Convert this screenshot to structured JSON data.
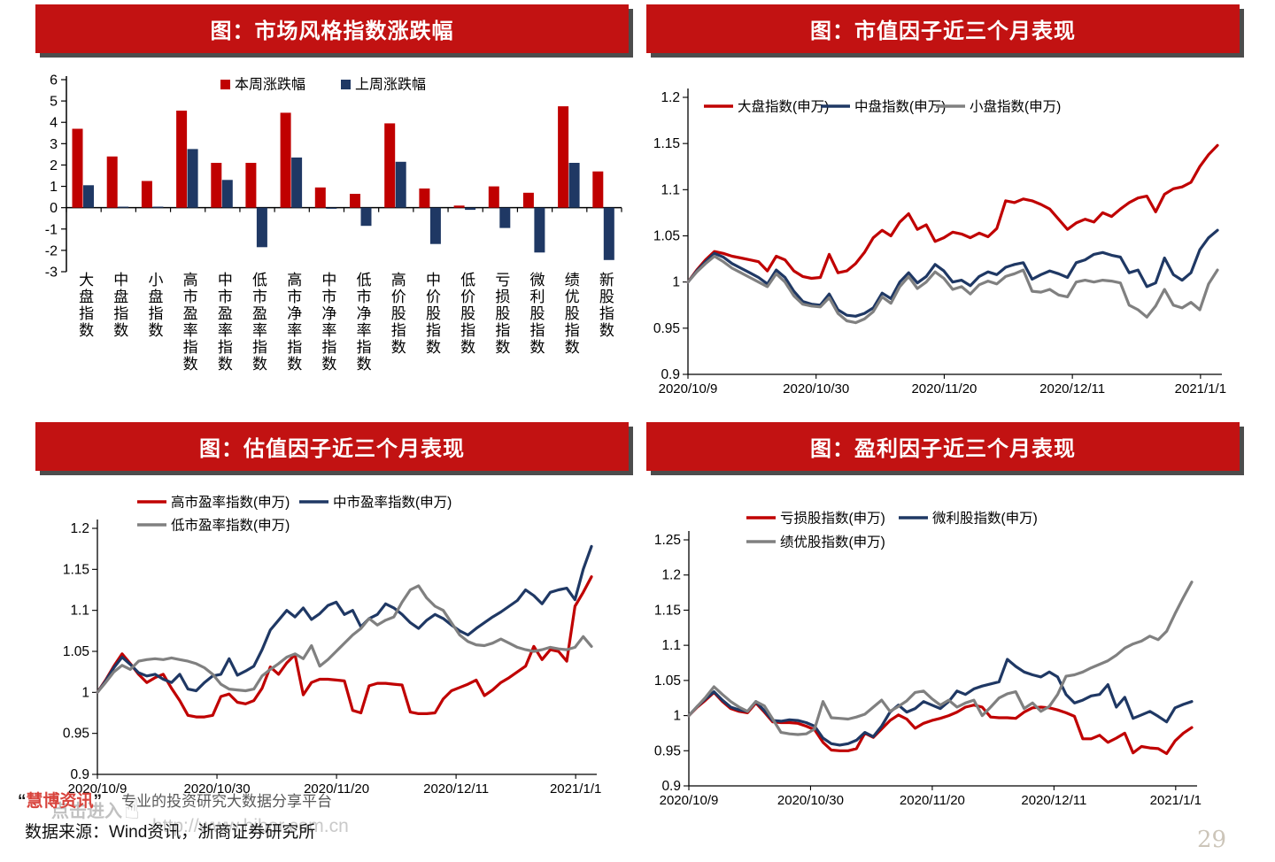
{
  "page": {
    "number": "29"
  },
  "colors": {
    "header_red": "#c21212",
    "header_shadow": "#4c4c4c",
    "series_red": "#c00000",
    "series_navy": "#1f3864",
    "series_gray": "#808080",
    "axis_black": "#000000",
    "page_number": "#ccc5b9",
    "brand_red": "#d8433c"
  },
  "footer": {
    "quote_open": "“",
    "brand": "慧博资讯",
    "quote_close": "”",
    "tagline": "专业的投资研究大数据分享平台",
    "source": "数据来源：Wind资讯，浙商证券研究所",
    "watermark_click": "点击进入",
    "watermark_hand": "☝",
    "watermark_url": "http://www.hibor.com.cn"
  },
  "chart_data": [
    {
      "type": "bar",
      "title": "图：市场风格指数涨跌幅",
      "ylim": [
        -3,
        6
      ],
      "ytick_step": 1,
      "grid": false,
      "legend_position": "top-center",
      "categories": [
        "大盘指数",
        "中盘指数",
        "小盘指数",
        "高市盈率指数",
        "中市盈率指数",
        "低市盈率指数",
        "高市净率指数",
        "中市净率指数",
        "低市净率指数",
        "高价股指数",
        "中价股指数",
        "低价股指数",
        "亏损股指数",
        "微利股指数",
        "绩优股指数",
        "新股指数"
      ],
      "series": [
        {
          "name": "本周涨跌幅",
          "color": "#c00000",
          "values": [
            3.7,
            2.4,
            1.25,
            4.55,
            2.1,
            2.1,
            4.45,
            0.95,
            0.65,
            3.95,
            0.9,
            0.1,
            1.0,
            0.7,
            4.75,
            1.7
          ]
        },
        {
          "name": "上周涨跌幅",
          "color": "#1f3864",
          "values": [
            1.05,
            0.05,
            0.05,
            2.75,
            1.3,
            -1.85,
            2.35,
            -0.05,
            -0.85,
            2.15,
            -1.7,
            -0.1,
            -0.95,
            -2.1,
            2.1,
            -2.45
          ]
        }
      ]
    },
    {
      "type": "line",
      "title": "图：市值因子近三个月表现",
      "ylim": [
        0.9,
        1.2
      ],
      "yticks": [
        "1.2",
        "1.15",
        "1.1",
        "1.05",
        "1",
        "0.95",
        "0.9"
      ],
      "xticklabels": [
        "2020/10/9",
        "2020/10/30",
        "2020/11/20",
        "2020/12/11",
        "2021/1/1"
      ],
      "grid": false,
      "legend_position": "top-inside",
      "series": [
        {
          "name": "大盘指数(申万)",
          "color": "#c00000",
          "values": [
            1.0,
            1.013,
            1.024,
            1.033,
            1.031,
            1.028,
            1.026,
            1.024,
            1.022,
            1.012,
            1.028,
            1.024,
            1.012,
            1.006,
            1.004,
            1.005,
            1.03,
            1.01,
            1.012,
            1.02,
            1.032,
            1.048,
            1.056,
            1.05,
            1.065,
            1.074,
            1.057,
            1.062,
            1.044,
            1.048,
            1.054,
            1.052,
            1.048,
            1.053,
            1.049,
            1.058,
            1.088,
            1.086,
            1.09,
            1.088,
            1.084,
            1.079,
            1.068,
            1.057,
            1.064,
            1.068,
            1.065,
            1.075,
            1.071,
            1.079,
            1.086,
            1.091,
            1.093,
            1.076,
            1.095,
            1.101,
            1.103,
            1.108,
            1.125,
            1.138,
            1.148
          ]
        },
        {
          "name": "中盘指数(申万)",
          "color": "#1f3864",
          "values": [
            1.0,
            1.012,
            1.022,
            1.031,
            1.027,
            1.02,
            1.015,
            1.01,
            1.005,
            0.998,
            1.013,
            1.005,
            0.99,
            0.979,
            0.976,
            0.975,
            0.987,
            0.97,
            0.964,
            0.963,
            0.966,
            0.972,
            0.988,
            0.982,
            1.0,
            1.01,
            0.999,
            1.006,
            1.019,
            1.012,
            1.0,
            1.002,
            0.996,
            1.006,
            1.011,
            1.008,
            1.016,
            1.019,
            1.021,
            1.003,
            1.008,
            1.012,
            1.009,
            1.005,
            1.021,
            1.024,
            1.03,
            1.032,
            1.029,
            1.027,
            1.01,
            1.013,
            0.995,
            0.999,
            1.026,
            1.008,
            1.002,
            1.01,
            1.035,
            1.048,
            1.056
          ]
        },
        {
          "name": "小盘指数(申万)",
          "color": "#808080",
          "values": [
            1.0,
            1.011,
            1.02,
            1.028,
            1.022,
            1.015,
            1.01,
            1.005,
            1.0,
            0.995,
            1.009,
            1.0,
            0.985,
            0.976,
            0.974,
            0.973,
            0.983,
            0.966,
            0.958,
            0.956,
            0.96,
            0.968,
            0.984,
            0.977,
            0.995,
            1.006,
            0.993,
            1.0,
            1.011,
            1.004,
            0.992,
            0.995,
            0.987,
            0.997,
            1.001,
            0.998,
            1.006,
            1.009,
            1.013,
            0.99,
            0.989,
            0.992,
            0.986,
            0.984,
            1.0,
            1.002,
            1.0,
            1.002,
            1.001,
            0.999,
            0.975,
            0.97,
            0.962,
            0.974,
            0.992,
            0.975,
            0.972,
            0.978,
            0.97,
            0.998,
            1.013
          ]
        }
      ]
    },
    {
      "type": "line",
      "title": "图：估值因子近三个月表现",
      "ylim": [
        0.9,
        1.2
      ],
      "yticks": [
        "1.2",
        "1.15",
        "1.1",
        "1.05",
        "1",
        "0.95",
        "0.9"
      ],
      "xticklabels": [
        "2020/10/9",
        "2020/10/30",
        "2020/11/20",
        "2020/12/11",
        "2021/1/1"
      ],
      "grid": false,
      "legend_position": "top-inside-2rows",
      "series": [
        {
          "name": "高市盈率指数(申万)",
          "color": "#c00000",
          "values": [
            1.0,
            1.015,
            1.032,
            1.047,
            1.035,
            1.022,
            1.012,
            1.018,
            1.022,
            1.005,
            0.99,
            0.972,
            0.97,
            0.97,
            0.972,
            0.995,
            0.998,
            0.988,
            0.986,
            0.99,
            1.005,
            1.031,
            1.022,
            1.036,
            1.046,
            0.997,
            1.012,
            1.016,
            1.016,
            1.015,
            1.014,
            0.978,
            0.975,
            1.008,
            1.011,
            1.011,
            1.01,
            1.009,
            0.976,
            0.974,
            0.974,
            0.975,
            0.992,
            1.002,
            1.006,
            1.01,
            1.015,
            0.996,
            1.003,
            1.012,
            1.018,
            1.025,
            1.032,
            1.056,
            1.04,
            1.052,
            1.05,
            1.038,
            1.105,
            1.122,
            1.141
          ]
        },
        {
          "name": "中市盈率指数(申万)",
          "color": "#1f3864",
          "values": [
            1.0,
            1.014,
            1.03,
            1.043,
            1.034,
            1.024,
            1.02,
            1.022,
            1.016,
            1.012,
            1.022,
            1.004,
            1.002,
            1.012,
            1.02,
            1.022,
            1.041,
            1.021,
            1.026,
            1.032,
            1.052,
            1.076,
            1.088,
            1.1,
            1.092,
            1.103,
            1.089,
            1.096,
            1.106,
            1.11,
            1.095,
            1.1,
            1.08,
            1.09,
            1.095,
            1.108,
            1.103,
            1.095,
            1.085,
            1.078,
            1.088,
            1.095,
            1.09,
            1.082,
            1.075,
            1.07,
            1.078,
            1.085,
            1.092,
            1.098,
            1.105,
            1.112,
            1.125,
            1.118,
            1.108,
            1.122,
            1.125,
            1.127,
            1.113,
            1.15,
            1.178
          ]
        },
        {
          "name": "低市盈率指数(申万)",
          "color": "#808080",
          "values": [
            1.0,
            1.012,
            1.025,
            1.033,
            1.028,
            1.038,
            1.04,
            1.041,
            1.04,
            1.042,
            1.04,
            1.038,
            1.035,
            1.03,
            1.022,
            1.01,
            1.004,
            1.003,
            1.002,
            1.004,
            1.02,
            1.028,
            1.035,
            1.043,
            1.047,
            1.041,
            1.057,
            1.032,
            1.04,
            1.05,
            1.06,
            1.07,
            1.078,
            1.09,
            1.082,
            1.088,
            1.092,
            1.11,
            1.125,
            1.13,
            1.115,
            1.105,
            1.1,
            1.085,
            1.07,
            1.062,
            1.058,
            1.057,
            1.06,
            1.065,
            1.06,
            1.055,
            1.052,
            1.05,
            1.052,
            1.055,
            1.053,
            1.052,
            1.055,
            1.068,
            1.056
          ]
        }
      ]
    },
    {
      "type": "line",
      "title": "图：盈利因子近三个月表现",
      "ylim": [
        0.9,
        1.25
      ],
      "yticks": [
        "1.25",
        "1.2",
        "1.15",
        "1.1",
        "1.05",
        "1",
        "0.95",
        "0.9"
      ],
      "xticklabels": [
        "2020/10/9",
        "2020/10/30",
        "2020/11/20",
        "2020/12/11",
        "2021/1/1"
      ],
      "grid": false,
      "legend_position": "top-inside-2rows",
      "series": [
        {
          "name": "亏损股指数(申万)",
          "color": "#c00000",
          "values": [
            1.0,
            1.012,
            1.022,
            1.033,
            1.02,
            1.01,
            1.006,
            1.004,
            1.018,
            1.005,
            0.991,
            0.99,
            0.99,
            0.989,
            0.985,
            0.98,
            0.962,
            0.951,
            0.95,
            0.95,
            0.953,
            0.975,
            0.969,
            0.981,
            0.993,
            1.001,
            0.995,
            0.982,
            0.989,
            0.993,
            0.996,
            1.0,
            1.005,
            1.012,
            1.015,
            1.012,
            0.998,
            0.997,
            0.997,
            0.996,
            1.005,
            1.011,
            1.012,
            1.011,
            1.008,
            1.004,
            0.999,
            0.967,
            0.967,
            0.972,
            0.962,
            0.968,
            0.975,
            0.947,
            0.956,
            0.954,
            0.953,
            0.946,
            0.964,
            0.975,
            0.983
          ]
        },
        {
          "name": "微利股指数(申万)",
          "color": "#1f3864",
          "values": [
            1.0,
            1.013,
            1.024,
            1.034,
            1.022,
            1.012,
            1.008,
            1.006,
            1.02,
            1.007,
            0.993,
            0.992,
            0.994,
            0.993,
            0.99,
            0.985,
            0.968,
            0.96,
            0.958,
            0.96,
            0.965,
            0.976,
            0.97,
            0.985,
            1.005,
            1.015,
            1.005,
            1.01,
            1.02,
            1.015,
            1.01,
            1.02,
            1.035,
            1.03,
            1.038,
            1.042,
            1.045,
            1.048,
            1.08,
            1.07,
            1.062,
            1.058,
            1.055,
            1.062,
            1.055,
            1.03,
            1.018,
            1.022,
            1.028,
            1.03,
            1.044,
            1.012,
            1.026,
            0.996,
            1.001,
            1.006,
            0.999,
            0.991,
            1.011,
            1.016,
            1.02
          ]
        },
        {
          "name": "绩优股指数(申万)",
          "color": "#808080",
          "values": [
            1.0,
            1.013,
            1.026,
            1.041,
            1.03,
            1.02,
            1.012,
            1.006,
            1.02,
            1.014,
            0.995,
            0.976,
            0.974,
            0.973,
            0.974,
            0.981,
            1.02,
            0.997,
            0.996,
            0.995,
            0.998,
            1.002,
            1.012,
            1.022,
            1.006,
            1.013,
            1.021,
            1.033,
            1.035,
            1.024,
            1.015,
            1.022,
            1.012,
            1.018,
            1.022,
            1.0,
            1.012,
            1.025,
            1.031,
            1.034,
            1.01,
            1.018,
            1.006,
            1.013,
            1.03,
            1.056,
            1.058,
            1.062,
            1.068,
            1.073,
            1.078,
            1.086,
            1.096,
            1.102,
            1.106,
            1.113,
            1.108,
            1.12,
            1.145,
            1.168,
            1.19
          ]
        }
      ]
    }
  ]
}
